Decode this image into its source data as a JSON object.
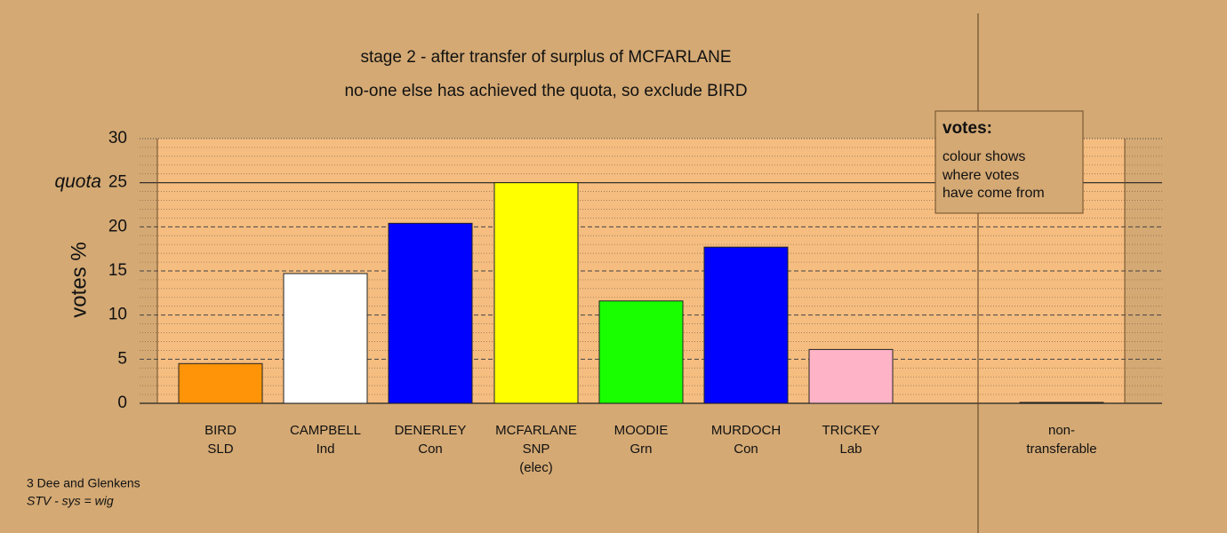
{
  "chart_data": {
    "type": "bar",
    "title": "stage 2 - after transfer of surplus of MCFARLANE",
    "subtitle": "no-one else has achieved the quota, so exclude BIRD",
    "y_label": "votes %",
    "categories": [
      [
        "BIRD",
        "SLD"
      ],
      [
        "CAMPBELL",
        "Ind"
      ],
      [
        "DENERLEY",
        "Con"
      ],
      [
        "MCFARLANE",
        "SNP",
        "(elec)"
      ],
      [
        "MOODIE",
        "Grn"
      ],
      [
        "MURDOCH",
        "Con"
      ],
      [
        "TRICKEY",
        "Lab"
      ],
      [
        "non-",
        "transferable"
      ]
    ],
    "values": [
      4.5,
      14.7,
      20.4,
      25,
      11.6,
      17.7,
      6.1,
      0.1
    ],
    "colors": [
      "#ff9408",
      "#ffffff",
      "#0000ff",
      "#ffff00",
      "#19ff00",
      "#0000ff",
      "#ffb3c6",
      "#999999"
    ],
    "ylim": [
      0,
      30
    ],
    "yticks": [
      0,
      5,
      10,
      15,
      20,
      25,
      30
    ],
    "minor_yticks": [
      1,
      2,
      3,
      4,
      6,
      7,
      8,
      9,
      11,
      12,
      13,
      14,
      16,
      17,
      18,
      19,
      21,
      22,
      23,
      24,
      26,
      27,
      28,
      29
    ],
    "quota": {
      "value": 25,
      "label": "quota"
    },
    "legend": {
      "title": "votes:",
      "lines": [
        "colour shows",
        "where votes",
        "have come from"
      ]
    },
    "footer": [
      "3 Dee and Glenkens",
      "STV - sys = wig"
    ]
  }
}
